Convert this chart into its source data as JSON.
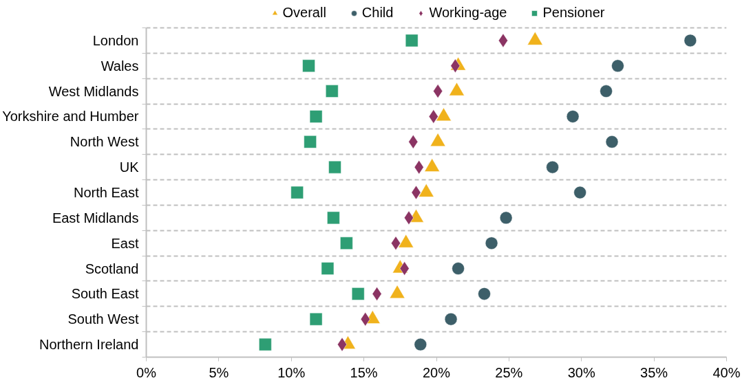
{
  "chart_data": {
    "type": "scatter",
    "orientation": "horizontal",
    "categories": [
      "London",
      "Wales",
      "West Midlands",
      "Yorkshire and Humber",
      "North West",
      "UK",
      "North East",
      "East Midlands",
      "East",
      "Scotland",
      "South East",
      "South West",
      "Northern Ireland"
    ],
    "series": [
      {
        "name": "Overall",
        "color": "#f0b21c",
        "marker": "triangle",
        "values": [
          26.8,
          21.5,
          21.4,
          20.5,
          20.1,
          19.7,
          19.3,
          18.6,
          17.9,
          17.5,
          17.3,
          15.6,
          13.9
        ]
      },
      {
        "name": "Child",
        "color": "#3d5f69",
        "marker": "circle",
        "values": [
          37.5,
          32.5,
          31.7,
          29.4,
          32.1,
          28.0,
          29.9,
          24.8,
          23.8,
          21.5,
          23.3,
          21.0,
          18.9
        ]
      },
      {
        "name": "Working-age",
        "color": "#8b3463",
        "marker": "diamond",
        "values": [
          24.6,
          21.3,
          20.1,
          19.8,
          18.4,
          18.8,
          18.6,
          18.1,
          17.2,
          17.8,
          15.9,
          15.1,
          13.5
        ]
      },
      {
        "name": "Pensioner",
        "color": "#2e9e74",
        "marker": "square",
        "values": [
          18.3,
          11.2,
          12.8,
          11.7,
          11.3,
          13.0,
          10.4,
          12.9,
          13.8,
          12.5,
          14.6,
          11.7,
          8.2
        ]
      }
    ],
    "xlim": [
      0,
      40
    ],
    "xticks": [
      {
        "value": 0,
        "label": "0%"
      },
      {
        "value": 5,
        "label": "5%"
      },
      {
        "value": 10,
        "label": "10%"
      },
      {
        "value": 15,
        "label": "15%"
      },
      {
        "value": 20,
        "label": "20%"
      },
      {
        "value": 25,
        "label": "25%"
      },
      {
        "value": 30,
        "label": "30%"
      },
      {
        "value": 35,
        "label": "35%"
      },
      {
        "value": 40,
        "label": "40%"
      }
    ],
    "grid": "y",
    "legend": "top"
  }
}
